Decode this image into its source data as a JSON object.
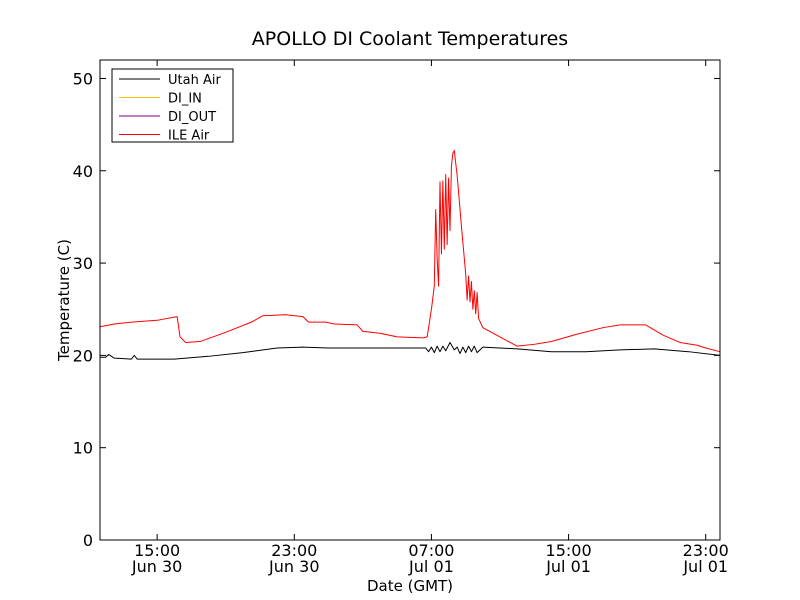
{
  "chart_data": {
    "type": "line",
    "title": "APOLLO DI Coolant Temperatures",
    "xlabel": "Date (GMT)",
    "ylabel": "Temperature (C)",
    "xlim": [
      "2012-06-30 11:40",
      "2012-07-01 23:50"
    ],
    "ylim": [
      0,
      52
    ],
    "yticks": [
      0,
      10,
      20,
      30,
      40,
      50
    ],
    "xticks": [
      {
        "at": "2012-06-30 15:00",
        "line1": "15:00",
        "line2": "Jun 30"
      },
      {
        "at": "2012-06-30 23:00",
        "line1": "23:00",
        "line2": "Jun 30"
      },
      {
        "at": "2012-07-01 07:00",
        "line1": "07:00",
        "line2": "Jul 01"
      },
      {
        "at": "2012-07-01 15:00",
        "line1": "15:00",
        "line2": "Jul 01"
      },
      {
        "at": "2012-07-01 23:00",
        "line1": "23:00",
        "line2": "Jul 01"
      }
    ],
    "grid": false,
    "legend_position": "top-left",
    "series": [
      {
        "name": "Utah Air",
        "color": "#000000",
        "points": [
          [
            "2012-06-30 11:40",
            19.8
          ],
          [
            "2012-06-30 12:00",
            19.8
          ],
          [
            "2012-06-30 12:10",
            20.1
          ],
          [
            "2012-06-30 12:30",
            19.7
          ],
          [
            "2012-06-30 13:30",
            19.6
          ],
          [
            "2012-06-30 13:40",
            20.0
          ],
          [
            "2012-06-30 13:50",
            19.6
          ],
          [
            "2012-06-30 16:00",
            19.6
          ],
          [
            "2012-06-30 18:00",
            19.9
          ],
          [
            "2012-06-30 20:00",
            20.3
          ],
          [
            "2012-06-30 22:00",
            20.8
          ],
          [
            "2012-06-30 23:30",
            20.9
          ],
          [
            "2012-07-01 01:00",
            20.8
          ],
          [
            "2012-07-01 04:00",
            20.8
          ],
          [
            "2012-07-01 06:40",
            20.8
          ],
          [
            "2012-07-01 06:50",
            20.4
          ],
          [
            "2012-07-01 07:00",
            20.9
          ],
          [
            "2012-07-01 07:10",
            20.3
          ],
          [
            "2012-07-01 07:20",
            21.0
          ],
          [
            "2012-07-01 07:30",
            20.4
          ],
          [
            "2012-07-01 07:40",
            21.0
          ],
          [
            "2012-07-01 07:50",
            20.5
          ],
          [
            "2012-07-01 08:05",
            21.4
          ],
          [
            "2012-07-01 08:20",
            20.6
          ],
          [
            "2012-07-01 08:30",
            20.9
          ],
          [
            "2012-07-01 08:40",
            20.2
          ],
          [
            "2012-07-01 08:50",
            20.9
          ],
          [
            "2012-07-01 09:00",
            20.3
          ],
          [
            "2012-07-01 09:10",
            21.0
          ],
          [
            "2012-07-01 09:20",
            20.4
          ],
          [
            "2012-07-01 09:30",
            21.0
          ],
          [
            "2012-07-01 09:40",
            20.3
          ],
          [
            "2012-07-01 10:00",
            20.9
          ],
          [
            "2012-07-01 12:00",
            20.7
          ],
          [
            "2012-07-01 14:00",
            20.4
          ],
          [
            "2012-07-01 16:00",
            20.4
          ],
          [
            "2012-07-01 18:00",
            20.6
          ],
          [
            "2012-07-01 20:00",
            20.7
          ],
          [
            "2012-07-01 22:00",
            20.4
          ],
          [
            "2012-07-01 23:50",
            20.0
          ]
        ]
      },
      {
        "name": "DI_IN",
        "color": "#ffbf00",
        "points": []
      },
      {
        "name": "DI_OUT",
        "color": "#800080",
        "points": []
      },
      {
        "name": "ILE Air",
        "color": "#ff0000",
        "points": [
          [
            "2012-06-30 11:40",
            23.1
          ],
          [
            "2012-06-30 12:30",
            23.4
          ],
          [
            "2012-06-30 13:30",
            23.6
          ],
          [
            "2012-06-30 15:00",
            23.8
          ],
          [
            "2012-06-30 16:10",
            24.2
          ],
          [
            "2012-06-30 16:20",
            22.0
          ],
          [
            "2012-06-30 16:40",
            21.4
          ],
          [
            "2012-06-30 17:30",
            21.5
          ],
          [
            "2012-06-30 19:00",
            22.5
          ],
          [
            "2012-06-30 20:30",
            23.6
          ],
          [
            "2012-06-30 21:10",
            24.3
          ],
          [
            "2012-06-30 22:30",
            24.4
          ],
          [
            "2012-06-30 23:30",
            24.2
          ],
          [
            "2012-06-30 23:50",
            23.6
          ],
          [
            "2012-07-01 00:50",
            23.6
          ],
          [
            "2012-07-01 01:20",
            23.4
          ],
          [
            "2012-07-01 02:40",
            23.3
          ],
          [
            "2012-07-01 03:00",
            22.6
          ],
          [
            "2012-07-01 04:00",
            22.4
          ],
          [
            "2012-07-01 05:00",
            22.0
          ],
          [
            "2012-07-01 06:30",
            21.9
          ],
          [
            "2012-07-01 06:45",
            22.0
          ],
          [
            "2012-07-01 07:00",
            25.0
          ],
          [
            "2012-07-01 07:10",
            27.5
          ],
          [
            "2012-07-01 07:15",
            35.8
          ],
          [
            "2012-07-01 07:20",
            30.5
          ],
          [
            "2012-07-01 07:25",
            27.5
          ],
          [
            "2012-07-01 07:30",
            38.8
          ],
          [
            "2012-07-01 07:35",
            31.0
          ],
          [
            "2012-07-01 07:40",
            38.9
          ],
          [
            "2012-07-01 07:45",
            31.5
          ],
          [
            "2012-07-01 07:50",
            39.6
          ],
          [
            "2012-07-01 07:55",
            32.0
          ],
          [
            "2012-07-01 08:00",
            39.2
          ],
          [
            "2012-07-01 08:05",
            33.5
          ],
          [
            "2012-07-01 08:10",
            40.5
          ],
          [
            "2012-07-01 08:15",
            41.9
          ],
          [
            "2012-07-01 08:20",
            42.2
          ],
          [
            "2012-07-01 08:30",
            39.5
          ],
          [
            "2012-07-01 08:45",
            34.0
          ],
          [
            "2012-07-01 09:00",
            28.8
          ],
          [
            "2012-07-01 09:05",
            26.0
          ],
          [
            "2012-07-01 09:10",
            28.6
          ],
          [
            "2012-07-01 09:15",
            25.8
          ],
          [
            "2012-07-01 09:20",
            28.0
          ],
          [
            "2012-07-01 09:25",
            25.0
          ],
          [
            "2012-07-01 09:30",
            27.0
          ],
          [
            "2012-07-01 09:35",
            24.5
          ],
          [
            "2012-07-01 09:40",
            26.8
          ],
          [
            "2012-07-01 09:45",
            24.0
          ],
          [
            "2012-07-01 10:00",
            23.0
          ],
          [
            "2012-07-01 11:00",
            22.0
          ],
          [
            "2012-07-01 12:00",
            21.0
          ],
          [
            "2012-07-01 13:00",
            21.2
          ],
          [
            "2012-07-01 14:00",
            21.5
          ],
          [
            "2012-07-01 15:30",
            22.3
          ],
          [
            "2012-07-01 17:00",
            23.0
          ],
          [
            "2012-07-01 18:00",
            23.3
          ],
          [
            "2012-07-01 19:30",
            23.3
          ],
          [
            "2012-07-01 20:30",
            22.2
          ],
          [
            "2012-07-01 21:30",
            21.4
          ],
          [
            "2012-07-01 22:30",
            21.1
          ],
          [
            "2012-07-01 23:00",
            20.8
          ],
          [
            "2012-07-01 23:50",
            20.4
          ]
        ]
      }
    ]
  }
}
